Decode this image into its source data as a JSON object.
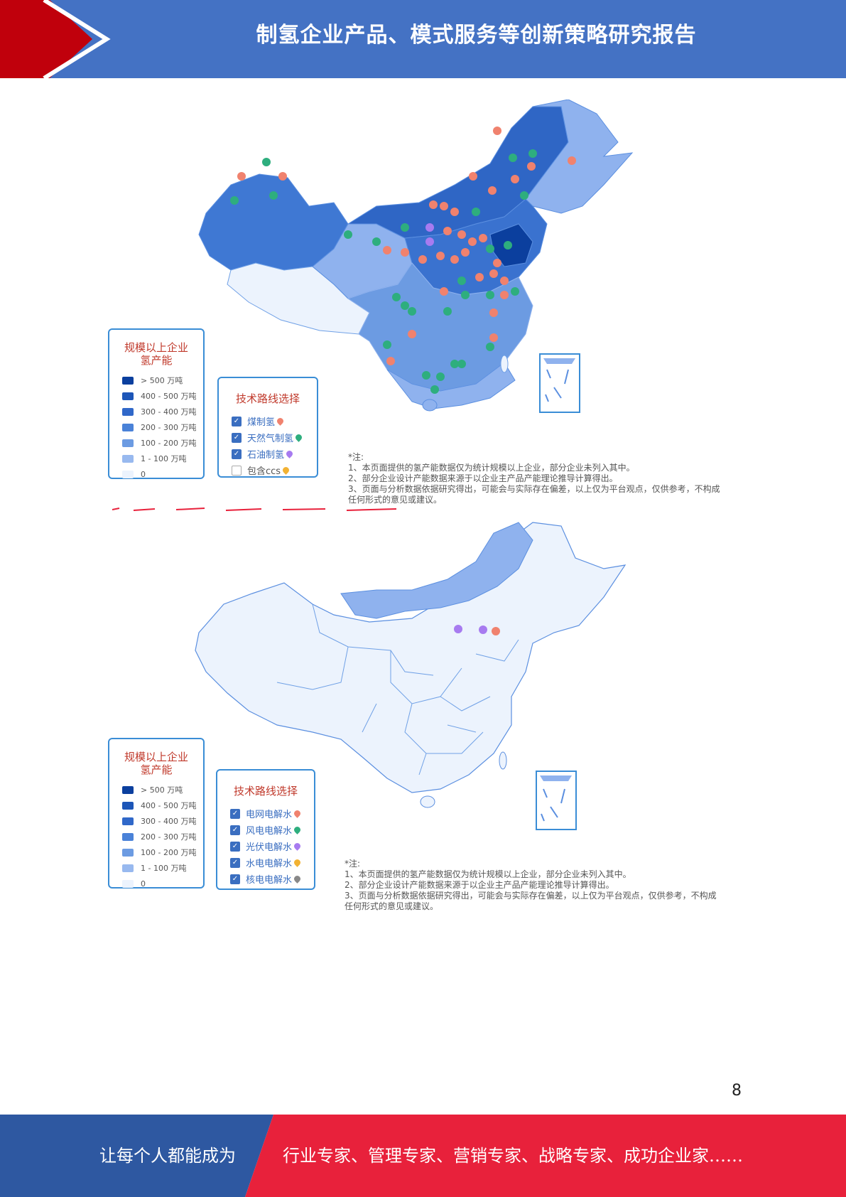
{
  "header": {
    "title": "制氢企业产品、模式服务等创新策略研究报告"
  },
  "map1": {
    "legend_title_line1": "规模以上企业",
    "legend_title_line2": "氢产能",
    "legend_items": [
      "> 500 万吨",
      "400 - 500 万吨",
      "300 - 400 万吨",
      "200 - 300 万吨",
      "100 - 200 万吨",
      "1 - 100 万吨",
      "0"
    ],
    "route_title": "技术路线选择",
    "routes": [
      {
        "label": "煤制氢",
        "checked": true,
        "pin_color": "#f0826e"
      },
      {
        "label": "天然气制氢",
        "checked": true,
        "pin_color": "#2eae7e"
      },
      {
        "label": "石油制氢",
        "checked": true,
        "pin_color": "#a77bf0"
      },
      {
        "label": "包含ccs",
        "checked": false,
        "pin_color": "#f2b233"
      }
    ],
    "notes": [
      "*注:",
      "1、本页面提供的氢产能数据仅为统计规模以上企业，部分企业未列入其中。",
      "2、部分企业设计产能数据来源于以企业主产品产能理论推导计算得出。",
      "3、页面与分析数据依据研究得出，可能会与实际存在偏差，以上仅为平台观点，仅供参考，不构成",
      "任何形式的意见或建议。"
    ]
  },
  "map2": {
    "legend_title_line1": "规模以上企业",
    "legend_title_line2": "氢产能",
    "legend_items": [
      "> 500 万吨",
      "400 - 500 万吨",
      "300 - 400 万吨",
      "200 - 300 万吨",
      "100 - 200 万吨",
      "1 - 100 万吨",
      "0"
    ],
    "route_title": "技术路线选择",
    "routes": [
      {
        "label": "电网电解水",
        "checked": true,
        "pin_color": "#f0826e"
      },
      {
        "label": "风电电解水",
        "checked": true,
        "pin_color": "#2eae7e"
      },
      {
        "label": "光伏电解水",
        "checked": true,
        "pin_color": "#a77bf0"
      },
      {
        "label": "水电电解水",
        "checked": true,
        "pin_color": "#f2b233"
      },
      {
        "label": "核电电解水",
        "checked": true,
        "pin_color": "#888888"
      }
    ],
    "notes": [
      "*注:",
      "1、本页面提供的氢产能数据仅为统计规模以上企业，部分企业未列入其中。",
      "2、部分企业设计产能数据来源于以企业主产品产能理论推导计算得出。",
      "3、页面与分析数据依据研究得出，可能会与实际存在偏差，以上仅为平台观点，仅供参考，不构成",
      "任何形式的意见或建议。"
    ]
  },
  "legend_colors": [
    "#0b3f9e",
    "#1d56b8",
    "#3068c9",
    "#4a82d8",
    "#6c9be2",
    "#98b9ef",
    "#ecf3fd"
  ],
  "page_number": "8",
  "footer": {
    "left_text": "让每个人都能成为",
    "right_text": "行业专家、管理专家、营销专家、战略专家、成功企业家……",
    "left_color": "#2e58a1",
    "right_color": "#e8213b"
  }
}
